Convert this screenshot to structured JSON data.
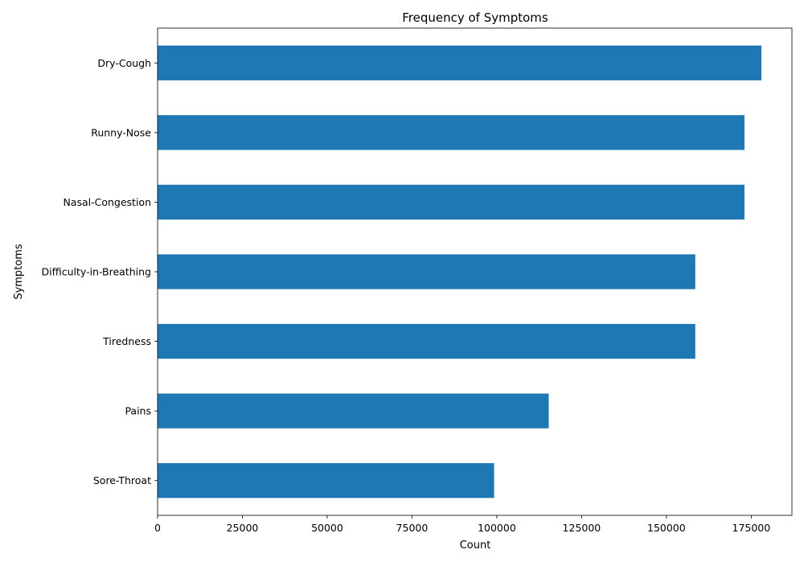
{
  "chart_data": {
    "type": "bar",
    "orientation": "horizontal",
    "title": "Frequency of Symptoms",
    "xlabel": "Count",
    "ylabel": "Symptoms",
    "categories": [
      "Dry-Cough",
      "Runny-Nose",
      "Nasal-Congestion",
      "Difficulty-in-Breathing",
      "Tiredness",
      "Pains",
      "Sore-Throat"
    ],
    "values": [
      178000,
      173000,
      173000,
      158500,
      158500,
      115300,
      99200
    ],
    "xlim": [
      0,
      187000
    ],
    "xticks": [
      0,
      25000,
      50000,
      75000,
      100000,
      125000,
      150000,
      175000
    ],
    "xtick_labels": [
      "0",
      "25000",
      "50000",
      "75000",
      "100000",
      "125000",
      "150000",
      "175000"
    ],
    "grid": false,
    "bar_color": "#1f77b4"
  }
}
